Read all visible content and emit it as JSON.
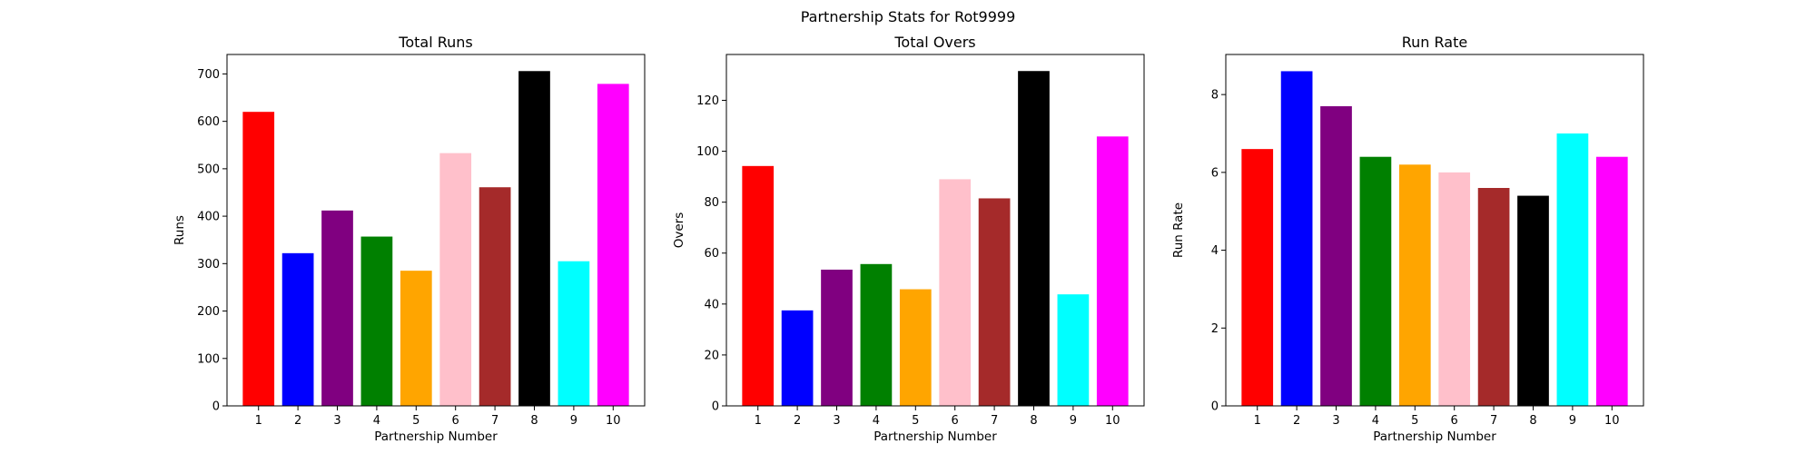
{
  "figure": {
    "suptitle": "Partnership Stats for Rot9999"
  },
  "chart_data": [
    {
      "type": "bar",
      "title": "Total Runs",
      "xlabel": "Partnership Number",
      "ylabel": "Runs",
      "categories": [
        "1",
        "2",
        "3",
        "4",
        "5",
        "6",
        "7",
        "8",
        "9",
        "10"
      ],
      "values": [
        620,
        322,
        412,
        357,
        285,
        533,
        461,
        706,
        305,
        679
      ],
      "colors": [
        "#ff0000",
        "#0000ff",
        "#800080",
        "#008000",
        "#ffa500",
        "#ffc0cb",
        "#a52a2a",
        "#000000",
        "#00ffff",
        "#ff00ff"
      ],
      "ylim": [
        0,
        741
      ],
      "yticks": [
        0,
        100,
        200,
        300,
        400,
        500,
        600,
        700
      ],
      "grid": false
    },
    {
      "type": "bar",
      "title": "Total Overs",
      "xlabel": "Partnership Number",
      "ylabel": "Overs",
      "categories": [
        "1",
        "2",
        "3",
        "4",
        "5",
        "6",
        "7",
        "8",
        "9",
        "10"
      ],
      "values": [
        94.2,
        37.5,
        53.5,
        55.7,
        45.8,
        89,
        81.5,
        131.5,
        43.8,
        105.8
      ],
      "colors": [
        "#ff0000",
        "#0000ff",
        "#800080",
        "#008000",
        "#ffa500",
        "#ffc0cb",
        "#a52a2a",
        "#000000",
        "#00ffff",
        "#ff00ff"
      ],
      "ylim": [
        0,
        138
      ],
      "yticks": [
        0,
        20,
        40,
        60,
        80,
        100,
        120
      ],
      "grid": false
    },
    {
      "type": "bar",
      "title": "Run Rate",
      "xlabel": "Partnership Number",
      "ylabel": "Run Rate",
      "categories": [
        "1",
        "2",
        "3",
        "4",
        "5",
        "6",
        "7",
        "8",
        "9",
        "10"
      ],
      "values": [
        6.6,
        8.6,
        7.7,
        6.4,
        6.2,
        6.0,
        5.6,
        5.4,
        7.0,
        6.4
      ],
      "colors": [
        "#ff0000",
        "#0000ff",
        "#800080",
        "#008000",
        "#ffa500",
        "#ffc0cb",
        "#a52a2a",
        "#000000",
        "#00ffff",
        "#ff00ff"
      ],
      "ylim": [
        0,
        9.03
      ],
      "yticks": [
        0,
        2,
        4,
        6,
        8
      ],
      "grid": false
    }
  ]
}
